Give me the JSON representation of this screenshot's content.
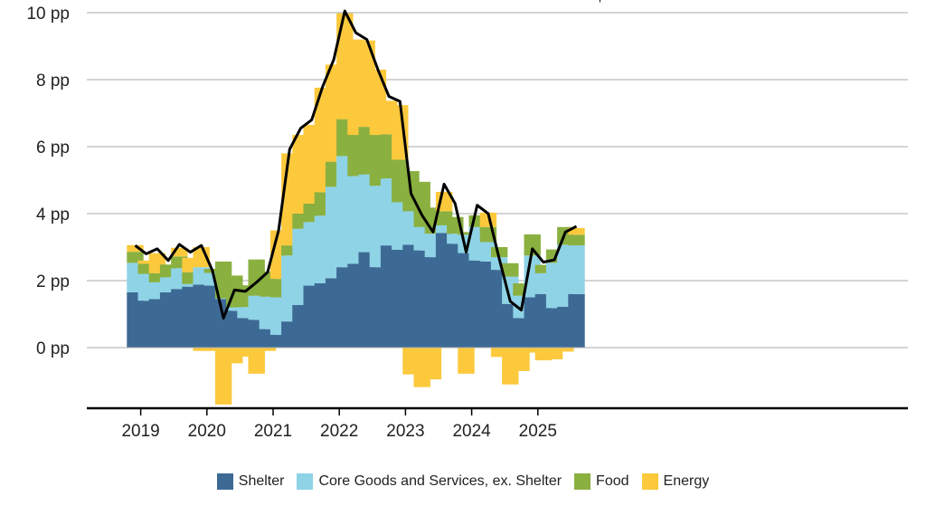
{
  "chart_data": {
    "type": "bar",
    "stacked": true,
    "title": "",
    "ylabel": "",
    "xlabel": "",
    "y_tick_values": [
      0,
      2,
      4,
      6,
      8,
      10
    ],
    "y_tick_labels": [
      "0 pp",
      "2 pp",
      "4 pp",
      "6 pp",
      "8 pp",
      "10 pp"
    ],
    "ylim": [
      -1.8,
      10.2
    ],
    "x_tick_labels": [
      "2019",
      "2020",
      "2021",
      "2022",
      "2023",
      "2024",
      "2025"
    ],
    "x_tick_positions": [
      0.5,
      6.5,
      12.5,
      18.5,
      24.5,
      30.5,
      36.5
    ],
    "annotation": {
      "text": "Sep",
      "index": 41
    },
    "colors": {
      "Shelter": "#3d6a95",
      "Core Goods and Services, ex. Shelter": "#8fd3e6",
      "Food": "#8ab040",
      "Energy": "#fcc93d",
      "line": "#000000"
    },
    "series": [
      {
        "name": "Shelter",
        "values": [
          1.65,
          1.4,
          1.45,
          1.65,
          1.75,
          1.82,
          1.88,
          1.85,
          1.45,
          1.1,
          0.88,
          0.83,
          0.55,
          0.38,
          0.78,
          1.27,
          1.85,
          1.92,
          2.07,
          2.4,
          2.5,
          2.85,
          2.4,
          3.05,
          2.92,
          3.07,
          2.9,
          2.7,
          3.42,
          3.1,
          2.82,
          2.6,
          2.57,
          2.32,
          1.3,
          0.88,
          1.5,
          1.6,
          1.18,
          1.22,
          1.6
        ]
      },
      {
        "name": "Core Goods and Services, ex. Shelter",
        "values": [
          0.88,
          0.8,
          0.5,
          0.45,
          0.62,
          0.08,
          0.52,
          0.38,
          0.02,
          0.1,
          0.33,
          0.72,
          0.97,
          1.12,
          1.97,
          2.28,
          1.9,
          2.02,
          2.73,
          3.32,
          2.62,
          2.32,
          2.43,
          2.0,
          1.42,
          1.0,
          0.7,
          0.7,
          0.23,
          0.3,
          0.55,
          1.0,
          0.58,
          0.38,
          0.82,
          0.67,
          1.25,
          0.62,
          1.35,
          1.85,
          1.45
        ]
      },
      {
        "name": "Food",
        "values": [
          0.33,
          0.3,
          0.27,
          0.38,
          0.35,
          0.35,
          0.0,
          0.12,
          1.1,
          0.95,
          0.65,
          1.08,
          0.75,
          0.55,
          0.3,
          0.45,
          0.55,
          0.7,
          0.75,
          1.1,
          1.23,
          1.42,
          1.52,
          1.32,
          1.27,
          1.2,
          1.35,
          0.78,
          0.42,
          0.5,
          0.08,
          0.35,
          0.45,
          0.3,
          0.4,
          0.37,
          0.63,
          0.25,
          0.4,
          0.53,
          0.32
        ]
      },
      {
        "name": "Energy",
        "values": [
          0.2,
          0.1,
          0.6,
          0.0,
          0.26,
          0.43,
          0.6,
          0.0,
          0.0,
          0.0,
          0.0,
          0.0,
          0.0,
          1.45,
          2.75,
          2.35,
          2.35,
          3.12,
          2.9,
          3.16,
          2.85,
          2.58,
          1.95,
          1.0,
          1.63,
          0.0,
          0.0,
          0.0,
          0.58,
          0.0,
          0.0,
          0.0,
          0.43,
          0.0,
          0.0,
          0.0,
          0.0,
          0.0,
          0.0,
          0.0,
          0.2
        ]
      },
      {
        "name": "Energy (negative)",
        "values": [
          0,
          0,
          0,
          0,
          0,
          0,
          -0.1,
          -0.1,
          -1.7,
          -0.47,
          -0.27,
          -0.78,
          -0.1,
          0,
          0,
          0,
          0,
          0,
          0,
          0,
          0,
          0,
          0,
          0,
          0,
          -0.8,
          -1.18,
          -0.95,
          0,
          0,
          -0.78,
          0,
          0,
          -0.28,
          -1.1,
          -0.7,
          -0.15,
          -0.38,
          -0.35,
          -0.12,
          0
        ]
      },
      {
        "name": "Headline",
        "type": "line",
        "values": [
          3.05,
          2.8,
          2.95,
          2.6,
          3.08,
          2.85,
          3.05,
          2.3,
          0.88,
          1.72,
          1.68,
          1.95,
          2.25,
          3.5,
          5.92,
          6.55,
          6.8,
          7.8,
          8.6,
          10.05,
          9.4,
          9.2,
          8.3,
          7.5,
          7.35,
          4.6,
          3.95,
          3.45,
          4.88,
          4.3,
          2.85,
          4.25,
          4.0,
          2.65,
          1.38,
          1.12,
          2.95,
          2.55,
          2.62,
          3.45,
          3.62
        ]
      }
    ]
  },
  "legend": {
    "items": [
      {
        "label": "Shelter",
        "color": "#3d6a95"
      },
      {
        "label": "Core Goods and Services, ex. Shelter",
        "color": "#8fd3e6"
      },
      {
        "label": "Food",
        "color": "#8ab040"
      },
      {
        "label": "Energy",
        "color": "#fcc93d"
      }
    ]
  }
}
